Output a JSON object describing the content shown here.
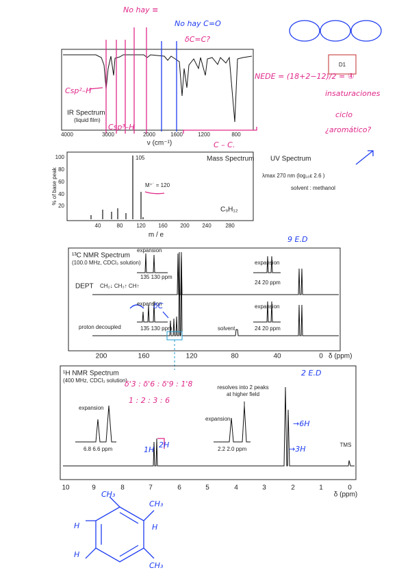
{
  "ir": {
    "title": "IR Spectrum",
    "subtitle": "(liquid film)",
    "ticks": [
      "4000",
      "3000",
      "2000",
      "1600",
      "1200",
      "800"
    ],
    "axis_label": "ν (cm⁻¹)"
  },
  "mass": {
    "title": "Mass Spectrum",
    "base_peak": "105",
    "molecular_ion": "M⁺˙ = 120",
    "formula": "C₉H₁₂",
    "y_label": "% of base peak",
    "yticks": [
      "100",
      "80",
      "60",
      "40",
      "20"
    ],
    "xticks": [
      "40",
      "80",
      "120",
      "160",
      "200",
      "240",
      "280"
    ],
    "x_label": "m / e"
  },
  "uv": {
    "title": "UV Spectrum",
    "lambda": "λmax 270 nm  (log₁₀ε 2.6 )",
    "solvent": "solvent :  methanol"
  },
  "c13": {
    "title": "¹³C NMR Spectrum",
    "subtitle": "(100.0 MHz, CDCl₃ solution)",
    "dept": "DEPT",
    "dept_legend": "CH₂↓  CH₃↑  CH↑",
    "expansion_1": "expansion",
    "expansion_1_ticks": "135  130   ppm",
    "expansion_2": "expansion",
    "expansion_2_ticks": "24     20    ppm",
    "expansion_3": "expansion",
    "expansion_3_ticks": "135  130   ppm",
    "expansion_4": "expansion",
    "expansion_4_ticks": "24     20    ppm",
    "proton_decoupled": "proton decoupled",
    "solvent": "solvent",
    "ticks": [
      "200",
      "160",
      "120",
      "80",
      "40",
      "0"
    ],
    "axis_label": "δ (ppm)"
  },
  "h1": {
    "title": "¹H NMR Spectrum",
    "subtitle": "(400 MHz, CDCl₃ solution)",
    "expansion_1": "expansion",
    "expansion_1_ticks": "6.8         6.6    ppm",
    "note": [
      "resolves into 2 peaks",
      "at higher field"
    ],
    "expansion_2": "expansion",
    "expansion_2_ticks": "2.2       2.0        ppm",
    "tms": "TMS",
    "ticks": [
      "10",
      "9",
      "8",
      "7",
      "6",
      "5",
      "4",
      "3",
      "2",
      "1",
      "0"
    ],
    "axis_label": "δ (ppm)"
  },
  "handwritten": {
    "no_triple": "No hay ≡",
    "no_carbonyl": "No hay C=O",
    "delta_cc": "δC=C?",
    "csp2": "Csp²–H",
    "csp3": "Csp³–H",
    "cc": "C – C.",
    "d1": "D1",
    "nede": "NEDE = (18+2−12)/2 = ④",
    "insaturaciones": "insaturaciones",
    "ciclo": "ciclo",
    "aromatico": "¿aromático?",
    "ed_c": "9 E.D",
    "ed_h": "2 E.D",
    "shifts": "δ'3 : δ'6 : δ'9 : 1'8",
    "ratio": "1 : 2 : 3 : 6",
    "h1": "1H",
    "h2": "2H",
    "h6": "→6H",
    "h3": "→3H",
    "dc": "δC",
    "structure": [
      "CH₃",
      "CH₃",
      "H",
      "H",
      "H",
      "CH₃"
    ]
  }
}
